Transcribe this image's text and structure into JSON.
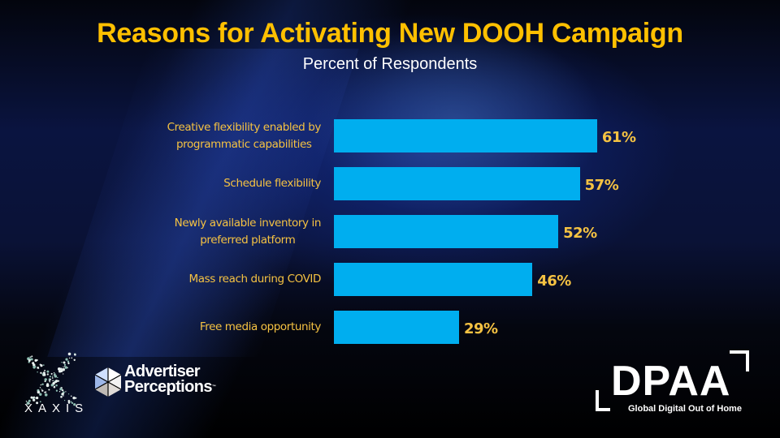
{
  "slide": {
    "title": "Reasons for Activating New DOOH Campaign",
    "subtitle": "Percent of Respondents"
  },
  "colors": {
    "title": "#FFC000",
    "bar": "#00AEEF",
    "labels": "#F5C242",
    "subtitle": "#FFFFFF"
  },
  "chart_data": {
    "type": "bar",
    "orientation": "horizontal",
    "title": "Reasons for Activating New DOOH Campaign",
    "subtitle": "Percent of Respondents",
    "xlabel": "",
    "ylabel": "",
    "categories": [
      "Creative flexibility enabled by programmatic capabilities",
      "Schedule flexibility",
      "Newly available inventory in preferred platform",
      "Mass reach during COVID",
      "Free media opportunity"
    ],
    "category_lines": [
      [
        "Creative flexibility enabled by",
        "programmatic capabilities"
      ],
      [
        "Schedule flexibility"
      ],
      [
        "Newly available inventory in",
        "preferred platform"
      ],
      [
        "Mass reach during COVID"
      ],
      [
        "Free media opportunity"
      ]
    ],
    "values": [
      61,
      57,
      52,
      46,
      29
    ],
    "value_labels": [
      "61%",
      "57%",
      "52%",
      "46%",
      "29%"
    ],
    "unit": "%",
    "xlim": [
      0,
      100
    ],
    "grid": false,
    "legend": "none"
  },
  "logos": {
    "xaxis": "XAXIS",
    "advertiser_perceptions_line1": "Advertiser",
    "advertiser_perceptions_line2": "Perceptions",
    "advertiser_perceptions_tm": "™",
    "dpaa": "DPAA",
    "dpaa_tagline": "Global Digital Out of Home"
  }
}
